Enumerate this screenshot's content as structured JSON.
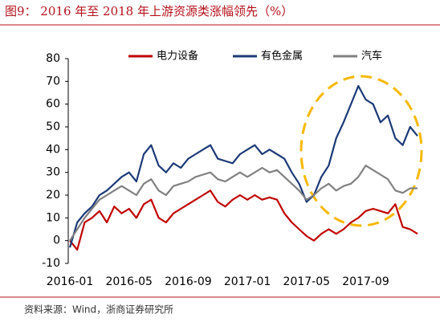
{
  "chart_data": {
    "type": "line",
    "title": "图9： 2016 年至 2018 年上游资源类涨幅领先（%）",
    "source": "资料来源：Wind，浙商证券研究所",
    "categories": [
      "2016-01",
      null,
      null,
      null,
      null,
      null,
      null,
      null,
      "2016-05",
      null,
      null,
      null,
      null,
      null,
      null,
      null,
      "2016-09",
      null,
      null,
      null,
      null,
      null,
      null,
      null,
      "2017-01",
      null,
      null,
      null,
      null,
      null,
      null,
      null,
      "2017-05",
      null,
      null,
      null,
      null,
      null,
      null,
      null,
      "2017-09",
      null,
      null,
      null,
      null,
      null,
      null,
      null
    ],
    "series": [
      {
        "name": "电力设备",
        "color": "#c00000",
        "values": [
          0,
          -4,
          8,
          10,
          13,
          8,
          15,
          12,
          14,
          10,
          16,
          18,
          10,
          8,
          12,
          14,
          16,
          18,
          20,
          22,
          17,
          15,
          18,
          20,
          18,
          20,
          18,
          19,
          18,
          12,
          8,
          5,
          2,
          0,
          3,
          5,
          3,
          5,
          8,
          10,
          13,
          14,
          13,
          12,
          16,
          6,
          5,
          3
        ]
      },
      {
        "name": "有色金属",
        "color": "#1c3a78",
        "values": [
          -3,
          8,
          12,
          15,
          20,
          22,
          25,
          28,
          30,
          26,
          38,
          42,
          33,
          30,
          34,
          32,
          36,
          38,
          40,
          42,
          36,
          35,
          34,
          38,
          40,
          42,
          38,
          40,
          38,
          36,
          30,
          25,
          17,
          20,
          28,
          33,
          45,
          52,
          60,
          68,
          62,
          60,
          52,
          55,
          45,
          42,
          50,
          46
        ]
      },
      {
        "name": "汽车",
        "color": "#808080",
        "values": [
          0,
          5,
          10,
          14,
          18,
          20,
          22,
          24,
          22,
          20,
          25,
          27,
          22,
          20,
          24,
          25,
          26,
          28,
          29,
          30,
          27,
          26,
          28,
          30,
          28,
          30,
          32,
          30,
          31,
          28,
          25,
          22,
          18,
          20,
          23,
          25,
          22,
          24,
          25,
          28,
          33,
          31,
          29,
          27,
          22,
          21,
          23,
          23
        ]
      }
    ],
    "ylim": [
      -10,
      80
    ],
    "yticks": [
      -10,
      0,
      10,
      20,
      30,
      40,
      50,
      60,
      70,
      80
    ],
    "legend": "top"
  }
}
